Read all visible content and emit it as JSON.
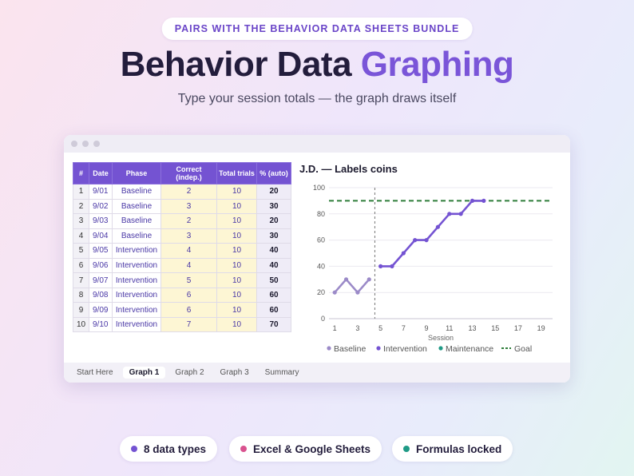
{
  "banner": {
    "tag": "PAIRS WITH THE BEHAVIOR DATA SHEETS BUNDLE",
    "title_main": "Behavior Data",
    "title_accent": "Graphing",
    "subtitle": "Type your session totals — the graph draws itself"
  },
  "colors": {
    "accent": "#7453d2",
    "baseline": "#9b8ac8",
    "intervention": "#7453d2",
    "maintenance": "#1f9a86",
    "goal": "#2e7d3a",
    "input_cell": "#fdf6d4",
    "badge_pink": "#d9528f"
  },
  "sheet": {
    "headers": {
      "num": "#",
      "date": "Date",
      "phase": "Phase",
      "correct": "Correct (indep.)",
      "trials": "Total trials",
      "pct": "% (auto)"
    },
    "rows": [
      {
        "num": "1",
        "date": "9/01",
        "phase": "Baseline",
        "correct": "2",
        "trials": "10",
        "pct": "20"
      },
      {
        "num": "2",
        "date": "9/02",
        "phase": "Baseline",
        "correct": "3",
        "trials": "10",
        "pct": "30"
      },
      {
        "num": "3",
        "date": "9/03",
        "phase": "Baseline",
        "correct": "2",
        "trials": "10",
        "pct": "20"
      },
      {
        "num": "4",
        "date": "9/04",
        "phase": "Baseline",
        "correct": "3",
        "trials": "10",
        "pct": "30"
      },
      {
        "num": "5",
        "date": "9/05",
        "phase": "Intervention",
        "correct": "4",
        "trials": "10",
        "pct": "40"
      },
      {
        "num": "6",
        "date": "9/06",
        "phase": "Intervention",
        "correct": "4",
        "trials": "10",
        "pct": "40"
      },
      {
        "num": "7",
        "date": "9/07",
        "phase": "Intervention",
        "correct": "5",
        "trials": "10",
        "pct": "50"
      },
      {
        "num": "8",
        "date": "9/08",
        "phase": "Intervention",
        "correct": "6",
        "trials": "10",
        "pct": "60"
      },
      {
        "num": "9",
        "date": "9/09",
        "phase": "Intervention",
        "correct": "6",
        "trials": "10",
        "pct": "60"
      },
      {
        "num": "10",
        "date": "9/10",
        "phase": "Intervention",
        "correct": "7",
        "trials": "10",
        "pct": "70"
      }
    ]
  },
  "chart_data": {
    "type": "line",
    "title": "J.D. — Labels coins",
    "xlabel": "Session",
    "ylabel": "",
    "xlim": [
      0.5,
      20
    ],
    "ylim": [
      0,
      100
    ],
    "xticks": [
      "1",
      "3",
      "5",
      "7",
      "9",
      "11",
      "13",
      "15",
      "17",
      "19"
    ],
    "yticks": [
      "0",
      "20",
      "40",
      "60",
      "80",
      "100"
    ],
    "grid": true,
    "legend": "bottom",
    "phase_change_x": 4.5,
    "series": [
      {
        "name": "Baseline",
        "x": [
          1,
          2,
          3,
          4
        ],
        "values": [
          20,
          30,
          20,
          30
        ]
      },
      {
        "name": "Intervention",
        "x": [
          5,
          6,
          7,
          8,
          9,
          10,
          11,
          12,
          13,
          14
        ],
        "values": [
          40,
          40,
          50,
          60,
          60,
          70,
          80,
          80,
          90,
          90
        ]
      },
      {
        "name": "Maintenance",
        "x": [],
        "values": []
      }
    ],
    "goal": {
      "name": "Goal",
      "value": 90
    }
  },
  "tabs": [
    "Start Here",
    "Graph 1",
    "Graph 2",
    "Graph 3",
    "Summary"
  ],
  "active_tab": "Graph 1",
  "badges": [
    {
      "label": "8 data types",
      "color": "#7453d2"
    },
    {
      "label": "Excel & Google Sheets",
      "color": "#d9528f"
    },
    {
      "label": "Formulas locked",
      "color": "#1f9a86"
    }
  ]
}
